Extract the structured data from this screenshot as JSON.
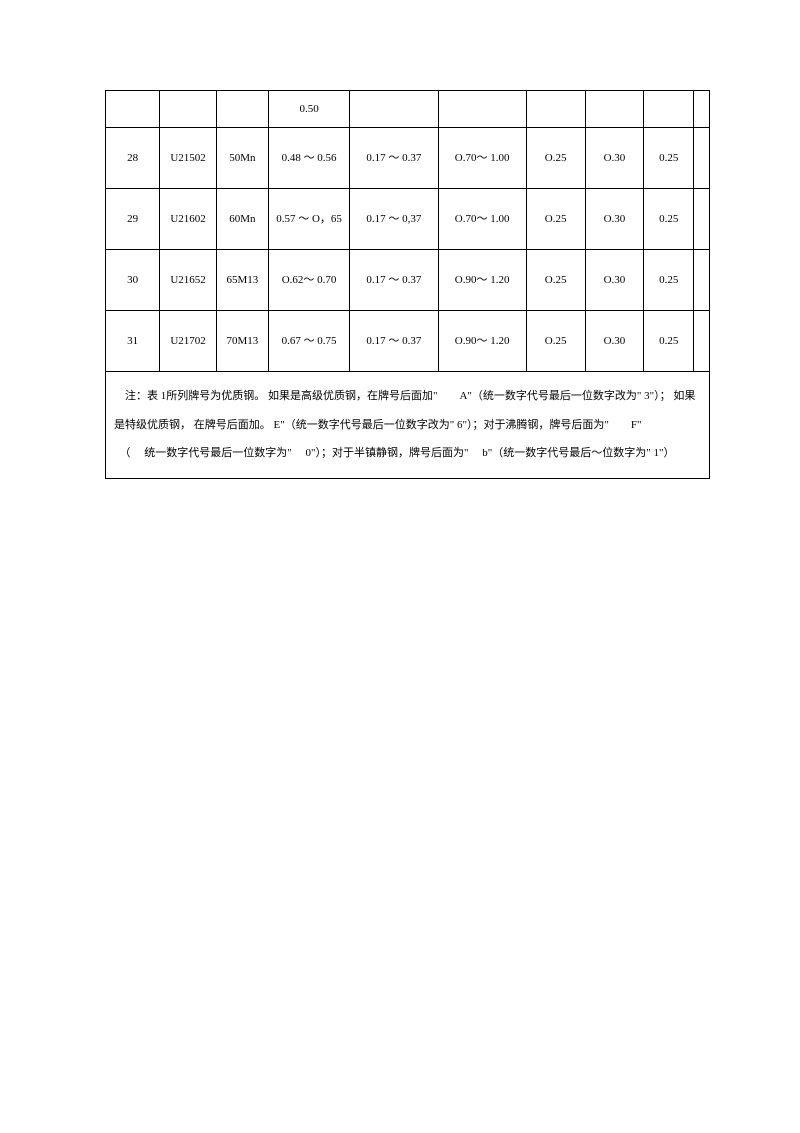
{
  "table": {
    "rows": [
      {
        "c1": "",
        "c2": "",
        "c3": "",
        "c4": "0.50",
        "c5": "",
        "c6": "",
        "c7": "",
        "c8": "",
        "c9": "",
        "c10": ""
      },
      {
        "c1": "28",
        "c2": "U21502",
        "c3": "50Mn",
        "c4": "0.48 ～ 0.56",
        "c5": "0.17 ～ 0.37",
        "c6": "O.70～ 1.00",
        "c7": "O.25",
        "c8": "O.30",
        "c9": "0.25",
        "c10": ""
      },
      {
        "c1": "29",
        "c2": "U21602",
        "c3": "60Mn",
        "c4": "0.57 ～ O，65",
        "c5": "0.17 ～ 0,37",
        "c6": "O.70～ 1.00",
        "c7": "O.25",
        "c8": "O.30",
        "c9": "0.25",
        "c10": ""
      },
      {
        "c1": "30",
        "c2": "U21652",
        "c3": "65M13",
        "c4": "O.62～ 0.70",
        "c5": "0.17 ～ 0.37",
        "c6": "O.90～ 1.20",
        "c7": "O.25",
        "c8": "O.30",
        "c9": "0.25",
        "c10": ""
      },
      {
        "c1": "31",
        "c2": "U21702",
        "c3": "70M13",
        "c4": "0.67 ～ 0.75",
        "c5": "0.17 ～ 0.37",
        "c6": "O.90～ 1.20",
        "c7": "O.25",
        "c8": "O.30",
        "c9": "0.25",
        "c10": ""
      }
    ],
    "note": "　注：表 1所列牌号为优质钢。 如果是高级优质钢，在牌号后面加\"　　A\"（统一数字代号最后一位数字改为\" 3\"）； 如果是特级优质钢， 在牌号后面加。  E\"（统一数字代号最后一位数字改为\" 6\"）；对于沸腾钢，牌号后面为\"　　F\"\n　（　 统一数字代号最后一位数字为\"　 0\"）；对于半镇静钢，牌号后面为\"　 b\"（统一数字代号最后～位数字为\"   1\"）"
  }
}
